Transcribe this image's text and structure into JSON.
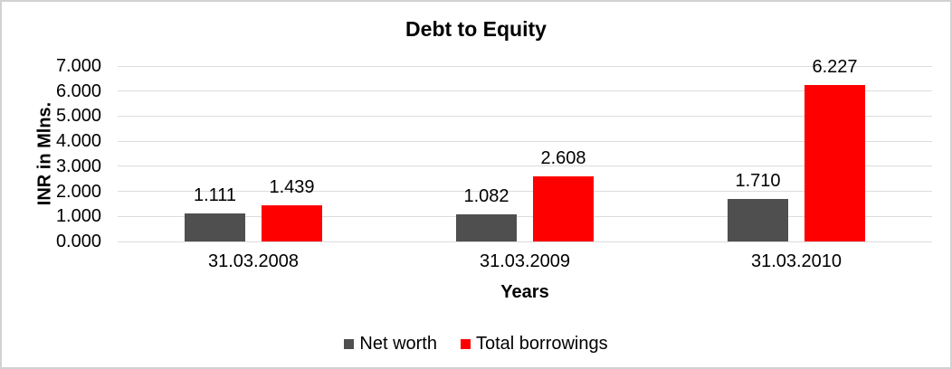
{
  "window": {
    "background_color": "#ffffff",
    "border_color": "#d2d2d2"
  },
  "chart_data": {
    "type": "bar",
    "title": "Debt to Equity",
    "xlabel": "Years",
    "ylabel": "INR in Mlns.",
    "categories": [
      "31.03.2008",
      "31.03.2009",
      "31.03.2010"
    ],
    "series": [
      {
        "name": "Net worth",
        "color": "#4f4f4f",
        "values": [
          1111,
          1082,
          1710
        ],
        "labels": [
          "1.111",
          "1.082",
          "1.710"
        ]
      },
      {
        "name": "Total borrowings",
        "color": "#ff0000",
        "values": [
          1439,
          2608,
          6227
        ],
        "labels": [
          "1.439",
          "2.608",
          "6.227"
        ]
      }
    ],
    "ylim": [
      0,
      7000
    ],
    "yticks": [
      {
        "value": 0,
        "label": "0.000"
      },
      {
        "value": 1000,
        "label": "1.000"
      },
      {
        "value": 2000,
        "label": "2.000"
      },
      {
        "value": 3000,
        "label": "3.000"
      },
      {
        "value": 4000,
        "label": "4.000"
      },
      {
        "value": 5000,
        "label": "5.000"
      },
      {
        "value": 6000,
        "label": "6.000"
      },
      {
        "value": 7000,
        "label": "7.000"
      }
    ],
    "grid": true,
    "gridline_color": "#dcdcdc",
    "legend_position": "bottom",
    "value_labels_shown": true
  }
}
